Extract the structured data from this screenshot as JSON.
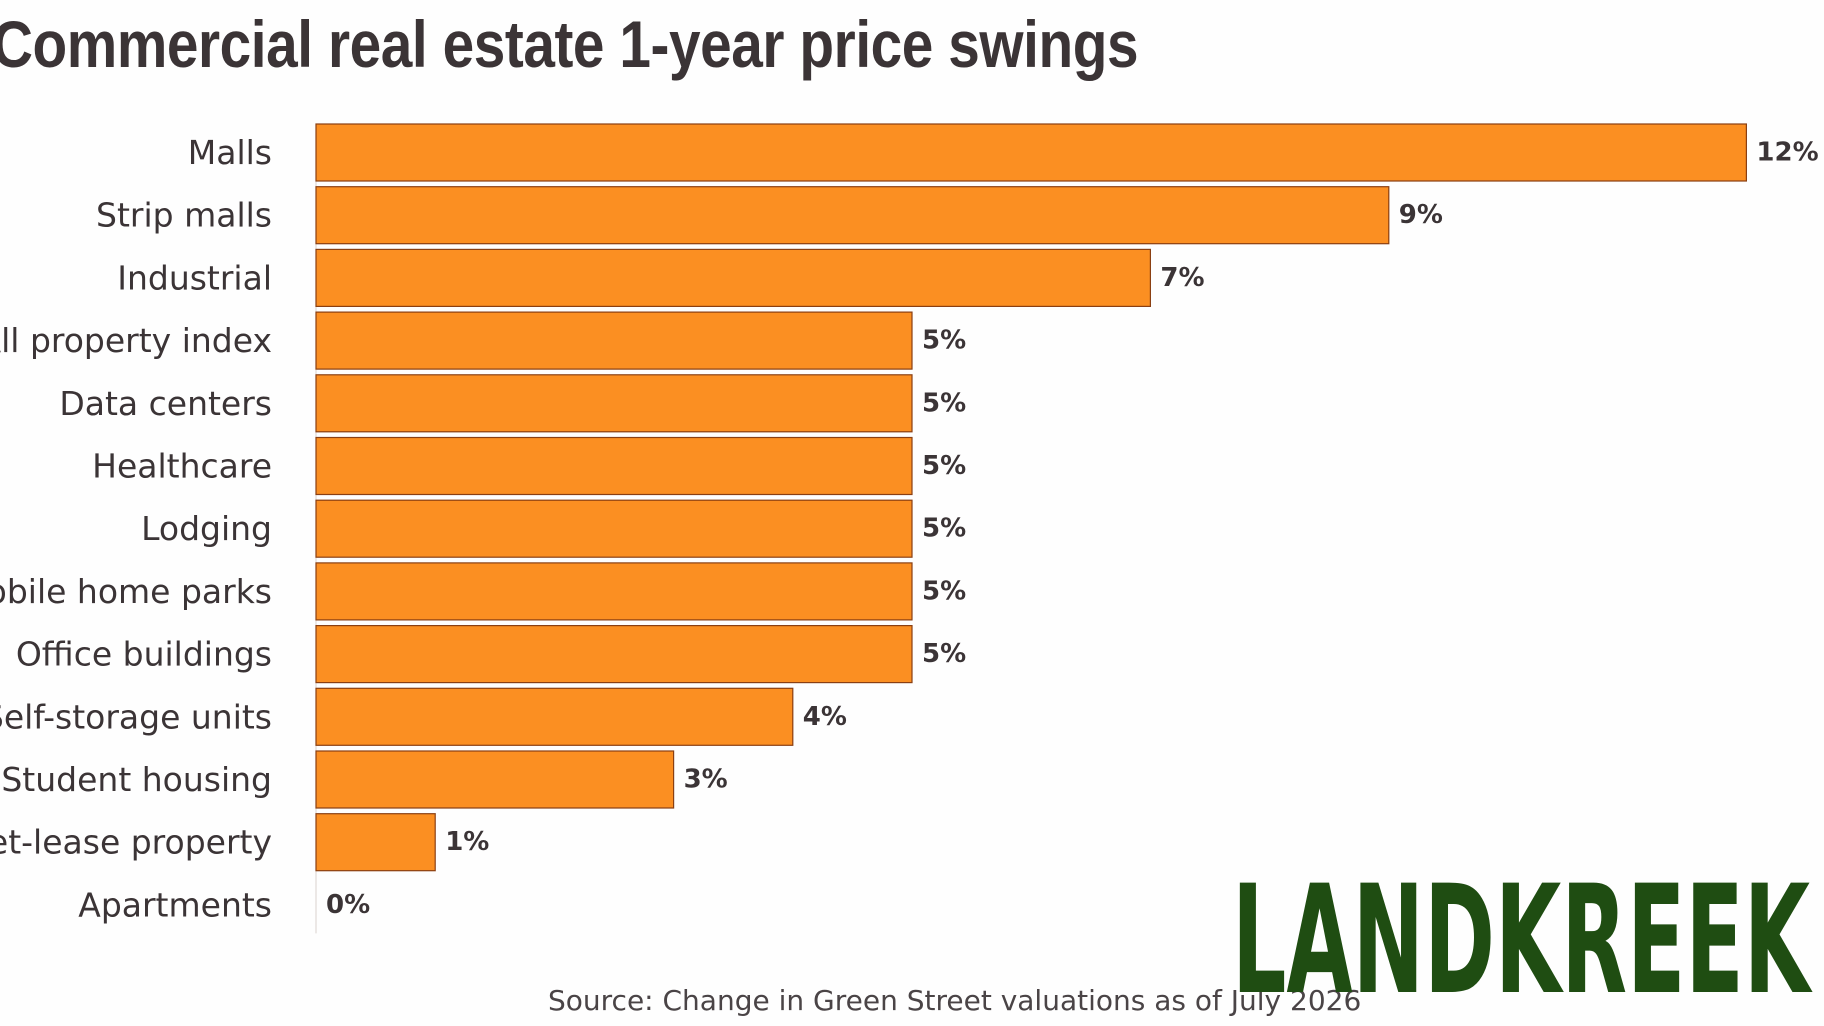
{
  "chart_data": {
    "type": "bar",
    "orientation": "horizontal",
    "title": "Commercial real estate 1-year price swings",
    "categories": [
      "Malls",
      "Strip malls",
      "Industrial",
      "All property index",
      "Data centers",
      "Healthcare",
      "Lodging",
      "Mobile home parks",
      "Office buildings",
      "Self-storage units",
      "Student housing",
      "Net-lease property",
      "Apartments"
    ],
    "values": [
      12,
      9,
      7,
      5,
      5,
      5,
      5,
      5,
      5,
      4,
      3,
      1,
      0
    ],
    "value_labels": [
      "12%",
      "9%",
      "7%",
      "5%",
      "5%",
      "5%",
      "5%",
      "5%",
      "5%",
      "4%",
      "3%",
      "1%",
      "0%"
    ],
    "xlim": [
      0,
      12
    ],
    "grid": false,
    "bar_color": "#fb8f22",
    "bar_edge_color": "#8a3f12",
    "source": "Source: Change in Green Street valuations as of July 2026"
  },
  "logo": {
    "text": "LANDKREEK",
    "color": "#1f4d12"
  },
  "colors": {
    "text": "#3b3436",
    "background": "#fefefe"
  }
}
